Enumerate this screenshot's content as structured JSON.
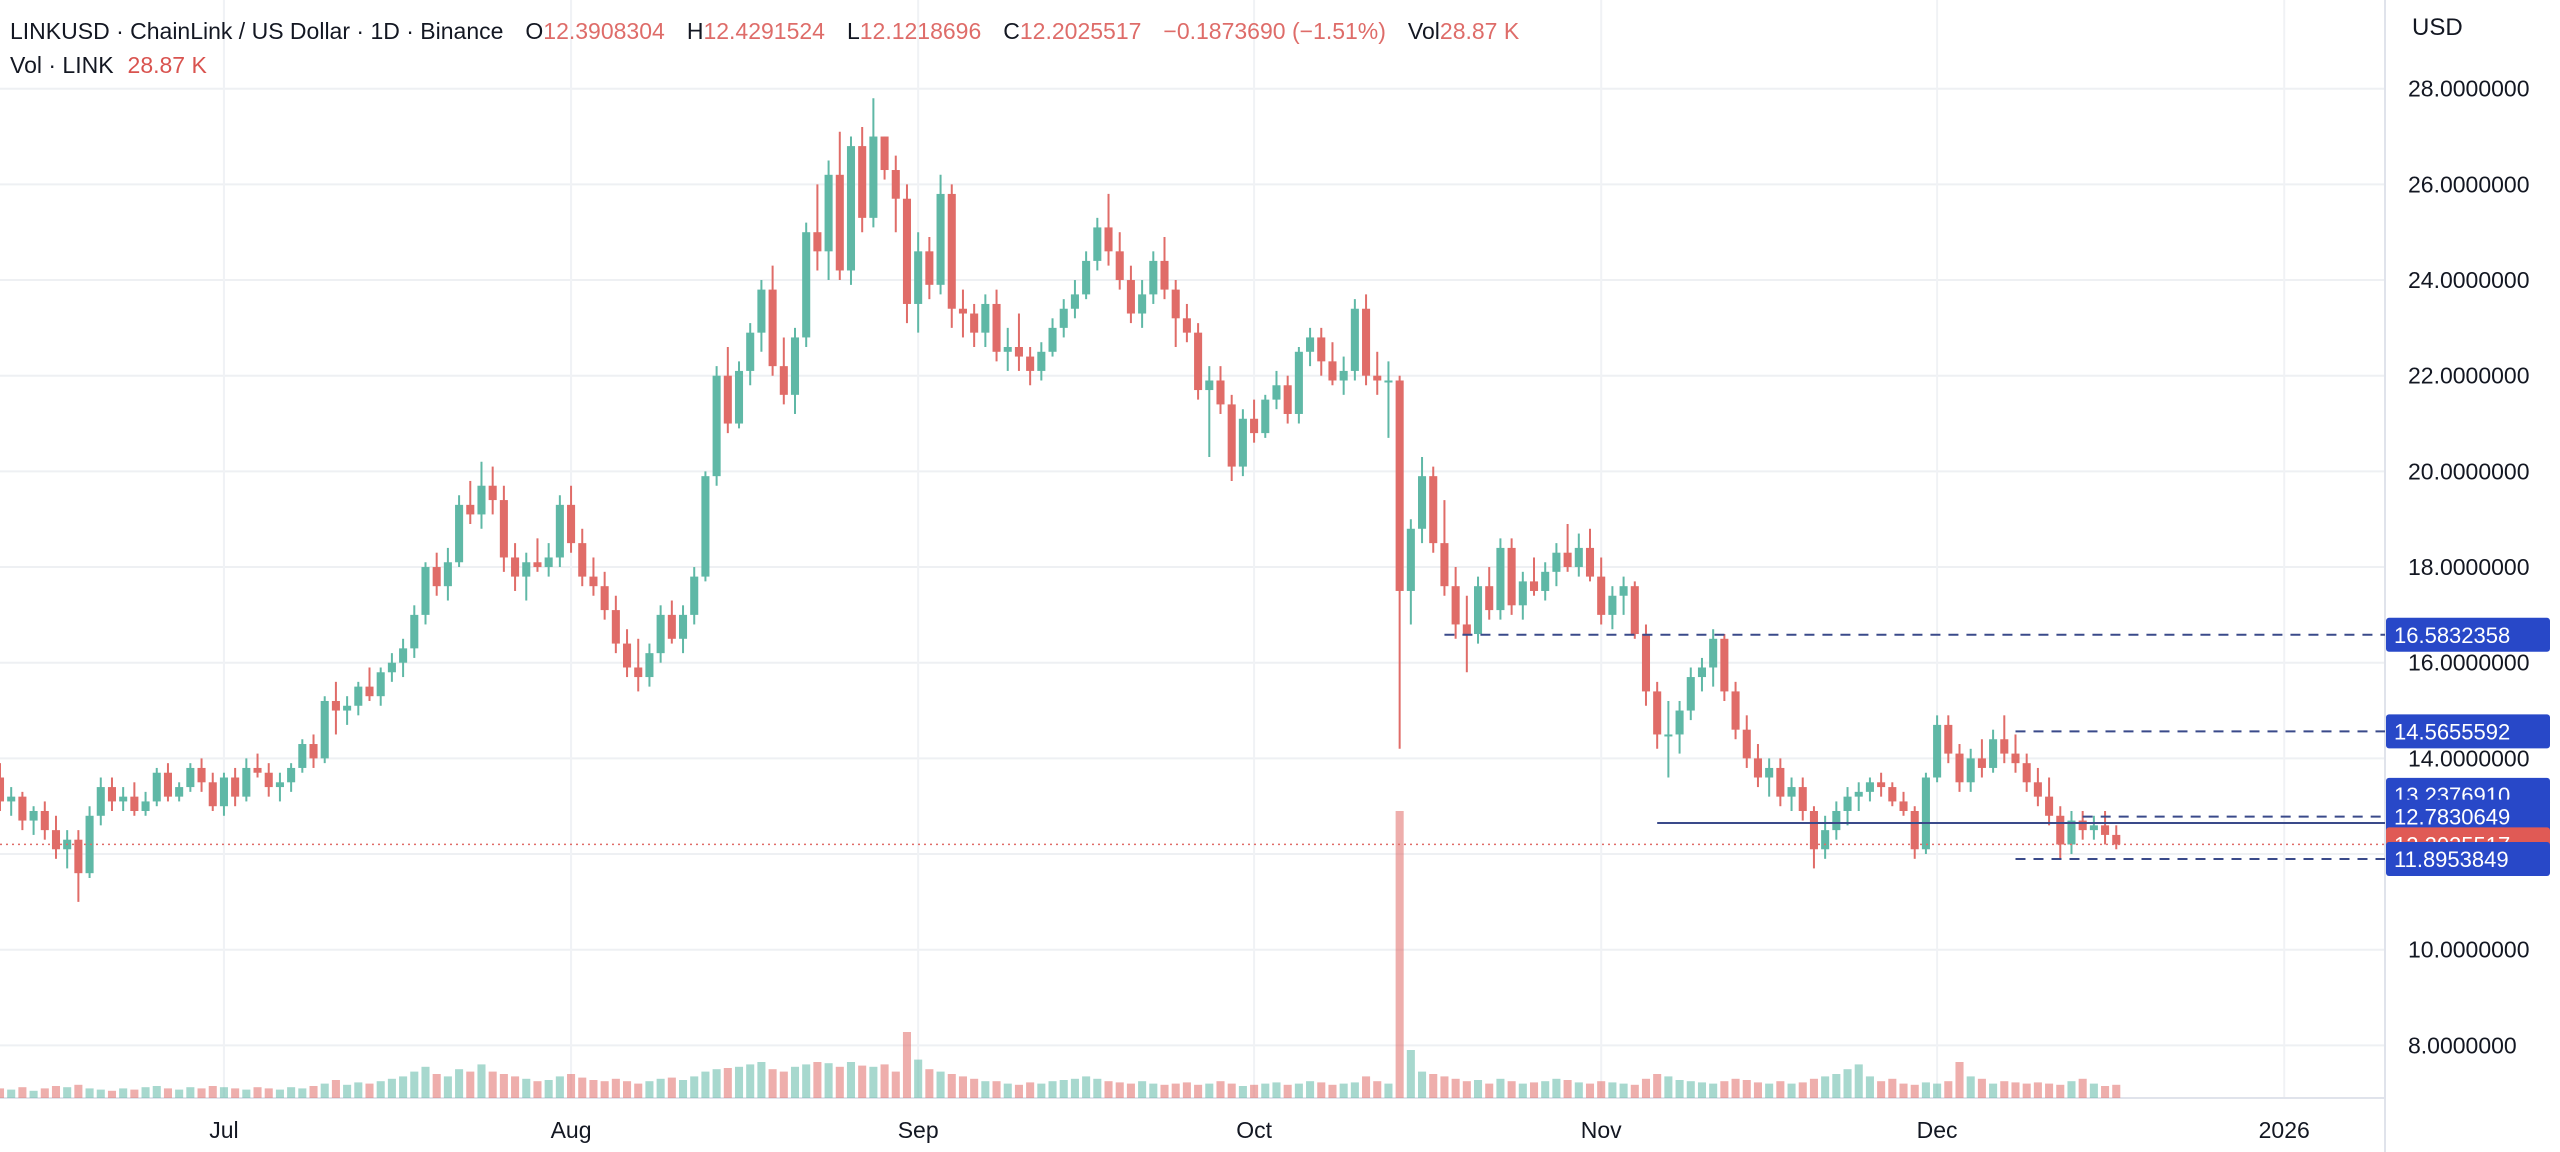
{
  "header": {
    "symbol": "LINKUSD · ChainLink / US Dollar · 1D · Binance",
    "o_label": "O",
    "o_value": "12.3908304",
    "h_label": "H",
    "h_value": "12.4291524",
    "l_label": "L",
    "l_value": "12.1218696",
    "c_label": "C",
    "c_value": "12.2025517",
    "change": "−0.1873690 (−1.51%)",
    "vol_label": "Vol",
    "vol_value": "28.87 K",
    "vol_row_label": "Vol · LINK",
    "vol_row_value": "28.87 K"
  },
  "price_axis": {
    "currency": "USD",
    "ticks": [
      "28.0000000",
      "26.0000000",
      "24.0000000",
      "22.0000000",
      "20.0000000",
      "18.0000000",
      "16.0000000",
      "14.0000000",
      "10.0000000",
      "8.0000000"
    ],
    "tick_values": [
      28,
      26,
      24,
      22,
      20,
      18,
      16,
      14,
      10,
      8
    ]
  },
  "time_axis": {
    "labels": [
      "Jul",
      "Aug",
      "Sep",
      "Oct",
      "Nov",
      "Dec",
      "2026"
    ]
  },
  "colors": {
    "up": "#5fb8a6",
    "down": "#e06c68",
    "tag_blue": "#2848c8",
    "tag_red": "#e05a55",
    "level_line": "#3a4a8a"
  },
  "levels": [
    {
      "label": "16.5832358",
      "value": 16.5832358,
      "style": "dashed",
      "color": "blue"
    },
    {
      "label": "14.5655592",
      "value": 14.5655592,
      "style": "dashed",
      "color": "blue"
    },
    {
      "label": "13.2376910",
      "value": 13.237691,
      "style": "none",
      "color": "blue"
    },
    {
      "label": "12.7830649",
      "value": 12.7830649,
      "style": "dashed",
      "color": "blue"
    },
    {
      "label": "12.2025517",
      "value": 12.2025517,
      "style": "dotted",
      "color": "red"
    },
    {
      "label": "11.8953849",
      "value": 11.8953849,
      "style": "dashed",
      "color": "blue"
    }
  ],
  "horizontal_line": {
    "value": 12.65
  },
  "chart_data": {
    "type": "candlestick",
    "title": "LINKUSD · ChainLink / US Dollar · 1D · Binance",
    "xlabel": "",
    "ylabel": "USD",
    "ylim": [
      6.9,
      28.6
    ],
    "x_range": [
      "2025-06-11",
      "2026-01-10"
    ],
    "start_date": "2025-06-11",
    "grid": true,
    "candles": [
      [
        13.6,
        13.9,
        12.9,
        13.1
      ],
      [
        13.1,
        13.4,
        12.8,
        13.2
      ],
      [
        13.2,
        13.3,
        12.5,
        12.7
      ],
      [
        12.7,
        13.0,
        12.4,
        12.9
      ],
      [
        12.9,
        13.1,
        12.3,
        12.5
      ],
      [
        12.5,
        12.8,
        11.9,
        12.1
      ],
      [
        12.1,
        12.5,
        11.7,
        12.3
      ],
      [
        12.3,
        12.5,
        11.0,
        11.6
      ],
      [
        11.6,
        13.0,
        11.5,
        12.8
      ],
      [
        12.8,
        13.6,
        12.6,
        13.4
      ],
      [
        13.4,
        13.6,
        12.9,
        13.1
      ],
      [
        13.1,
        13.4,
        12.9,
        13.2
      ],
      [
        13.2,
        13.5,
        12.8,
        12.9
      ],
      [
        12.9,
        13.3,
        12.8,
        13.1
      ],
      [
        13.1,
        13.8,
        13.0,
        13.7
      ],
      [
        13.7,
        13.9,
        13.1,
        13.2
      ],
      [
        13.2,
        13.5,
        13.1,
        13.4
      ],
      [
        13.4,
        13.9,
        13.3,
        13.8
      ],
      [
        13.8,
        14.0,
        13.3,
        13.5
      ],
      [
        13.5,
        13.7,
        12.9,
        13.0
      ],
      [
        13.0,
        13.7,
        12.8,
        13.6
      ],
      [
        13.6,
        13.8,
        13.0,
        13.2
      ],
      [
        13.2,
        14.0,
        13.1,
        13.8
      ],
      [
        13.8,
        14.1,
        13.6,
        13.7
      ],
      [
        13.7,
        13.9,
        13.2,
        13.4
      ],
      [
        13.4,
        13.7,
        13.1,
        13.5
      ],
      [
        13.5,
        13.9,
        13.3,
        13.8
      ],
      [
        13.8,
        14.4,
        13.7,
        14.3
      ],
      [
        14.3,
        14.5,
        13.8,
        14.0
      ],
      [
        14.0,
        15.3,
        13.9,
        15.2
      ],
      [
        15.2,
        15.6,
        14.5,
        15.0
      ],
      [
        15.0,
        15.3,
        14.7,
        15.1
      ],
      [
        15.1,
        15.6,
        14.9,
        15.5
      ],
      [
        15.5,
        15.9,
        15.2,
        15.3
      ],
      [
        15.3,
        15.9,
        15.1,
        15.8
      ],
      [
        15.8,
        16.2,
        15.6,
        16.0
      ],
      [
        16.0,
        16.5,
        15.7,
        16.3
      ],
      [
        16.3,
        17.2,
        16.1,
        17.0
      ],
      [
        17.0,
        18.1,
        16.8,
        18.0
      ],
      [
        18.0,
        18.3,
        17.4,
        17.6
      ],
      [
        17.6,
        18.4,
        17.3,
        18.1
      ],
      [
        18.1,
        19.5,
        18.0,
        19.3
      ],
      [
        19.3,
        19.8,
        18.9,
        19.1
      ],
      [
        19.1,
        20.2,
        18.8,
        19.7
      ],
      [
        19.7,
        20.1,
        19.1,
        19.4
      ],
      [
        19.4,
        19.7,
        17.9,
        18.2
      ],
      [
        18.2,
        18.5,
        17.5,
        17.8
      ],
      [
        17.8,
        18.3,
        17.3,
        18.1
      ],
      [
        18.1,
        18.6,
        17.9,
        18.0
      ],
      [
        18.0,
        18.5,
        17.8,
        18.2
      ],
      [
        18.2,
        19.5,
        18.0,
        19.3
      ],
      [
        19.3,
        19.7,
        18.3,
        18.5
      ],
      [
        18.5,
        18.8,
        17.6,
        17.8
      ],
      [
        17.8,
        18.2,
        17.4,
        17.6
      ],
      [
        17.6,
        17.9,
        16.9,
        17.1
      ],
      [
        17.1,
        17.4,
        16.2,
        16.4
      ],
      [
        16.4,
        16.7,
        15.7,
        15.9
      ],
      [
        15.9,
        16.5,
        15.4,
        15.7
      ],
      [
        15.7,
        16.4,
        15.5,
        16.2
      ],
      [
        16.2,
        17.2,
        16.0,
        17.0
      ],
      [
        17.0,
        17.3,
        16.4,
        16.5
      ],
      [
        16.5,
        17.2,
        16.2,
        17.0
      ],
      [
        17.0,
        18.0,
        16.8,
        17.8
      ],
      [
        17.8,
        20.0,
        17.7,
        19.9
      ],
      [
        19.9,
        22.2,
        19.7,
        22.0
      ],
      [
        22.0,
        22.6,
        20.8,
        21.0
      ],
      [
        21.0,
        22.3,
        20.9,
        22.1
      ],
      [
        22.1,
        23.1,
        21.8,
        22.9
      ],
      [
        22.9,
        24.0,
        22.5,
        23.8
      ],
      [
        23.8,
        24.3,
        22.0,
        22.2
      ],
      [
        22.2,
        22.8,
        21.4,
        21.6
      ],
      [
        21.6,
        23.0,
        21.2,
        22.8
      ],
      [
        22.8,
        25.2,
        22.6,
        25.0
      ],
      [
        25.0,
        26.0,
        24.2,
        24.6
      ],
      [
        24.6,
        26.5,
        24.0,
        26.2
      ],
      [
        26.2,
        27.1,
        24.0,
        24.2
      ],
      [
        24.2,
        27.0,
        23.9,
        26.8
      ],
      [
        26.8,
        27.2,
        25.0,
        25.3
      ],
      [
        25.3,
        27.8,
        25.1,
        27.0
      ],
      [
        27.0,
        27.0,
        26.1,
        26.3
      ],
      [
        26.3,
        26.6,
        25.0,
        25.7
      ],
      [
        25.7,
        26.0,
        23.1,
        23.5
      ],
      [
        23.5,
        25.0,
        22.9,
        24.6
      ],
      [
        24.6,
        24.9,
        23.6,
        23.9
      ],
      [
        23.9,
        26.2,
        23.7,
        25.8
      ],
      [
        25.8,
        26.0,
        23.0,
        23.4
      ],
      [
        23.4,
        23.8,
        22.8,
        23.3
      ],
      [
        23.3,
        23.5,
        22.6,
        22.9
      ],
      [
        22.9,
        23.7,
        22.6,
        23.5
      ],
      [
        23.5,
        23.8,
        22.3,
        22.5
      ],
      [
        22.5,
        23.0,
        22.1,
        22.6
      ],
      [
        22.6,
        23.3,
        22.1,
        22.4
      ],
      [
        22.4,
        22.6,
        21.8,
        22.1
      ],
      [
        22.1,
        22.7,
        21.9,
        22.5
      ],
      [
        22.5,
        23.2,
        22.4,
        23.0
      ],
      [
        23.0,
        23.6,
        22.8,
        23.4
      ],
      [
        23.4,
        24.0,
        23.2,
        23.7
      ],
      [
        23.7,
        24.6,
        23.6,
        24.4
      ],
      [
        24.4,
        25.3,
        24.2,
        25.1
      ],
      [
        25.1,
        25.8,
        24.3,
        24.6
      ],
      [
        24.6,
        25.0,
        23.8,
        24.0
      ],
      [
        24.0,
        24.3,
        23.1,
        23.3
      ],
      [
        23.3,
        24.0,
        23.0,
        23.7
      ],
      [
        23.7,
        24.6,
        23.5,
        24.4
      ],
      [
        24.4,
        24.9,
        23.6,
        23.8
      ],
      [
        23.8,
        24.0,
        22.6,
        23.2
      ],
      [
        23.2,
        23.5,
        22.7,
        22.9
      ],
      [
        22.9,
        23.1,
        21.5,
        21.7
      ],
      [
        21.7,
        22.2,
        20.3,
        21.9
      ],
      [
        21.9,
        22.2,
        21.2,
        21.4
      ],
      [
        21.4,
        21.6,
        19.8,
        20.1
      ],
      [
        20.1,
        21.3,
        19.9,
        21.1
      ],
      [
        21.1,
        21.5,
        20.6,
        20.8
      ],
      [
        20.8,
        21.6,
        20.7,
        21.5
      ],
      [
        21.5,
        22.1,
        21.3,
        21.8
      ],
      [
        21.8,
        22.0,
        21.0,
        21.2
      ],
      [
        21.2,
        22.6,
        21.0,
        22.5
      ],
      [
        22.5,
        23.0,
        22.2,
        22.8
      ],
      [
        22.8,
        23.0,
        22.0,
        22.3
      ],
      [
        22.3,
        22.7,
        21.8,
        21.9
      ],
      [
        21.9,
        22.4,
        21.6,
        22.1
      ],
      [
        22.1,
        23.6,
        21.9,
        23.4
      ],
      [
        23.4,
        23.7,
        21.8,
        22.0
      ],
      [
        22.0,
        22.5,
        21.6,
        21.9
      ],
      [
        21.9,
        22.3,
        20.7,
        21.9
      ],
      [
        21.9,
        22.0,
        14.2,
        17.5
      ],
      [
        17.5,
        19.0,
        16.8,
        18.8
      ],
      [
        18.8,
        20.3,
        18.5,
        19.9
      ],
      [
        19.9,
        20.1,
        18.3,
        18.5
      ],
      [
        18.5,
        19.4,
        17.4,
        17.6
      ],
      [
        17.6,
        18.0,
        16.5,
        16.8
      ],
      [
        16.8,
        17.4,
        15.8,
        16.6
      ],
      [
        16.6,
        17.8,
        16.4,
        17.6
      ],
      [
        17.6,
        18.0,
        16.9,
        17.1
      ],
      [
        17.1,
        18.6,
        16.9,
        18.4
      ],
      [
        18.4,
        18.6,
        17.0,
        17.2
      ],
      [
        17.2,
        17.9,
        16.9,
        17.7
      ],
      [
        17.7,
        18.2,
        17.4,
        17.5
      ],
      [
        17.5,
        18.1,
        17.3,
        17.9
      ],
      [
        17.9,
        18.5,
        17.6,
        18.3
      ],
      [
        18.3,
        18.9,
        17.9,
        18.0
      ],
      [
        18.0,
        18.7,
        17.8,
        18.4
      ],
      [
        18.4,
        18.8,
        17.7,
        17.8
      ],
      [
        17.8,
        18.2,
        16.8,
        17.0
      ],
      [
        17.0,
        17.6,
        16.7,
        17.4
      ],
      [
        17.4,
        17.8,
        17.0,
        17.6
      ],
      [
        17.6,
        17.7,
        16.5,
        16.6
      ],
      [
        16.6,
        16.8,
        15.1,
        15.4
      ],
      [
        15.4,
        15.6,
        14.2,
        14.5
      ],
      [
        14.5,
        15.2,
        13.6,
        14.5
      ],
      [
        14.5,
        15.2,
        14.1,
        15.0
      ],
      [
        15.0,
        15.9,
        14.8,
        15.7
      ],
      [
        15.7,
        16.1,
        15.4,
        15.9
      ],
      [
        15.9,
        16.7,
        15.5,
        16.5
      ],
      [
        16.5,
        16.6,
        15.2,
        15.4
      ],
      [
        15.4,
        15.6,
        14.4,
        14.6
      ],
      [
        14.6,
        14.9,
        13.8,
        14.0
      ],
      [
        14.0,
        14.3,
        13.4,
        13.6
      ],
      [
        13.6,
        14.0,
        13.2,
        13.8
      ],
      [
        13.8,
        14.0,
        13.0,
        13.2
      ],
      [
        13.2,
        13.6,
        12.9,
        13.4
      ],
      [
        13.4,
        13.6,
        12.7,
        12.9
      ],
      [
        12.9,
        13.0,
        11.7,
        12.1
      ],
      [
        12.1,
        12.8,
        11.9,
        12.5
      ],
      [
        12.5,
        13.1,
        12.3,
        12.9
      ],
      [
        12.9,
        13.4,
        12.6,
        13.2
      ],
      [
        13.2,
        13.5,
        12.9,
        13.3
      ],
      [
        13.3,
        13.6,
        13.1,
        13.5
      ],
      [
        13.5,
        13.7,
        13.2,
        13.4
      ],
      [
        13.4,
        13.5,
        13.0,
        13.1
      ],
      [
        13.1,
        13.3,
        12.8,
        12.9
      ],
      [
        12.9,
        13.0,
        11.9,
        12.1
      ],
      [
        12.1,
        13.7,
        12.0,
        13.6
      ],
      [
        13.6,
        14.9,
        13.5,
        14.7
      ],
      [
        14.7,
        14.9,
        13.9,
        14.1
      ],
      [
        14.1,
        14.3,
        13.3,
        13.5
      ],
      [
        13.5,
        14.2,
        13.3,
        14.0
      ],
      [
        14.0,
        14.4,
        13.6,
        13.8
      ],
      [
        13.8,
        14.6,
        13.7,
        14.4
      ],
      [
        14.4,
        14.9,
        13.9,
        14.1
      ],
      [
        14.1,
        14.5,
        13.7,
        13.9
      ],
      [
        13.9,
        14.1,
        13.3,
        13.5
      ],
      [
        13.5,
        13.8,
        13.0,
        13.2
      ],
      [
        13.2,
        13.6,
        12.6,
        12.8
      ],
      [
        12.8,
        13.0,
        11.9,
        12.2
      ],
      [
        12.2,
        12.9,
        12.0,
        12.7
      ],
      [
        12.7,
        12.9,
        12.3,
        12.5
      ],
      [
        12.5,
        12.8,
        12.3,
        12.6
      ],
      [
        12.6,
        12.9,
        12.2,
        12.4
      ],
      [
        12.4,
        12.6,
        12.1,
        12.2
      ]
    ],
    "volume_scale": [
      0,
      100
    ],
    "volume": [
      8,
      7,
      9,
      6,
      8,
      10,
      9,
      11,
      8,
      7,
      6,
      8,
      7,
      9,
      10,
      8,
      7,
      9,
      8,
      10,
      9,
      8,
      7,
      9,
      8,
      7,
      9,
      8,
      10,
      12,
      15,
      11,
      13,
      12,
      14,
      16,
      18,
      22,
      26,
      20,
      18,
      24,
      22,
      28,
      22,
      20,
      18,
      16,
      14,
      15,
      18,
      20,
      17,
      15,
      14,
      16,
      14,
      12,
      14,
      16,
      17,
      15,
      18,
      22,
      24,
      25,
      26,
      28,
      30,
      24,
      22,
      26,
      28,
      30,
      29,
      26,
      30,
      27,
      26,
      28,
      22,
      55,
      32,
      24,
      22,
      20,
      18,
      16,
      14,
      14,
      12,
      11,
      13,
      12,
      14,
      15,
      16,
      18,
      16,
      14,
      13,
      12,
      14,
      12,
      11,
      12,
      13,
      11,
      12,
      14,
      12,
      10,
      11,
      12,
      13,
      11,
      12,
      14,
      13,
      11,
      12,
      13,
      18,
      14,
      12,
      100,
      40,
      22,
      20,
      18,
      16,
      14,
      15,
      12,
      16,
      14,
      12,
      13,
      14,
      16,
      15,
      13,
      12,
      14,
      13,
      12,
      11,
      16,
      20,
      18,
      15,
      14,
      13,
      12,
      14,
      16,
      15,
      13,
      12,
      14,
      12,
      13,
      16,
      18,
      20,
      24,
      28,
      18,
      14,
      16,
      12,
      11,
      13,
      12,
      14,
      30,
      18,
      16,
      12,
      14,
      13,
      12,
      13,
      12,
      11,
      14,
      16,
      12,
      10,
      11,
      10,
      9,
      8
    ],
    "volume_label": "Vol · LINK",
    "levels": [
      16.5832358,
      14.5655592,
      13.237691,
      12.7830649,
      12.2025517,
      11.8953849
    ]
  }
}
